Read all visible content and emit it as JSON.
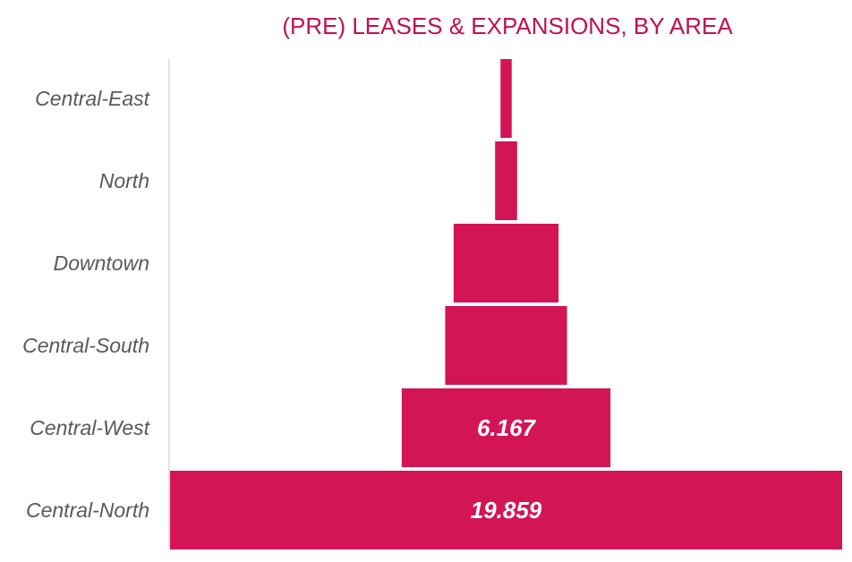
{
  "colors": {
    "bar": "#d31455",
    "title": "#c0114e",
    "axis": "#d9d9d9",
    "label": "#595959",
    "value_text": "#ffffff"
  },
  "chart_data": {
    "type": "bar",
    "orientation": "horizontal-funnel",
    "title": "(PRE) LEASES & EXPANSIONS, BY AREA",
    "categories": [
      "Central-East",
      "North",
      "Downtown",
      "Central-South",
      "Central-West",
      "Central-North"
    ],
    "values": [
      330,
      650,
      3100,
      3600,
      6167,
      19859
    ],
    "data_labels": [
      "",
      "",
      "",
      "",
      "6.167",
      "19.859"
    ],
    "grid": false
  }
}
